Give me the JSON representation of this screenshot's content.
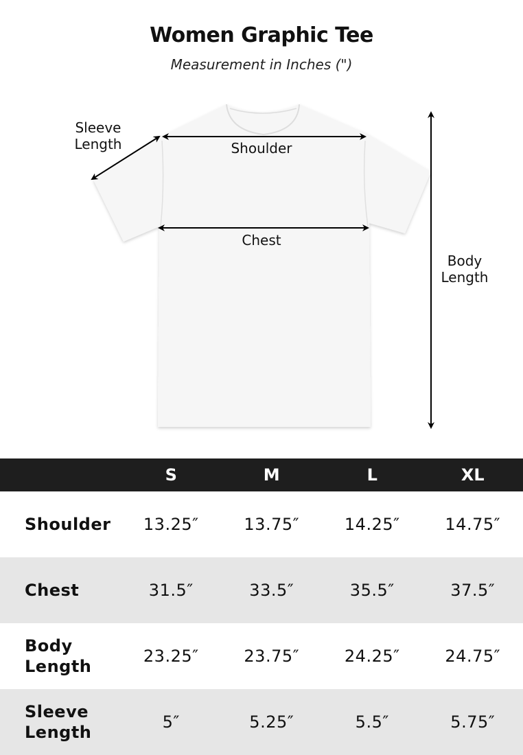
{
  "header": {
    "title": "Women Graphic Tee",
    "subtitle": "Measurement in Inches (\")"
  },
  "diagram": {
    "sleeve_label": "Sleeve Length",
    "shoulder_label": "Shoulder",
    "chest_label": "Chest",
    "body_label": "Body Length",
    "shirt_color": "#f6f6f6",
    "arrow_color": "#000000"
  },
  "table": {
    "header_bg": "#1e1e1e",
    "stripe_bg": "#e6e6e6",
    "sizes": [
      "S",
      "M",
      "L",
      "XL"
    ],
    "rows": [
      {
        "label": "Shoulder",
        "values": [
          "13.25″",
          "13.75″",
          "14.25″",
          "14.75″"
        ]
      },
      {
        "label": "Chest",
        "values": [
          "31.5″",
          "33.5″",
          "35.5″",
          "37.5″"
        ]
      },
      {
        "label": "Body Length",
        "values": [
          "23.25″",
          "23.75″",
          "24.25″",
          "24.75″"
        ]
      },
      {
        "label": "Sleeve Length",
        "values": [
          "5″",
          "5.25″",
          "5.5″",
          "5.75″"
        ]
      }
    ]
  }
}
